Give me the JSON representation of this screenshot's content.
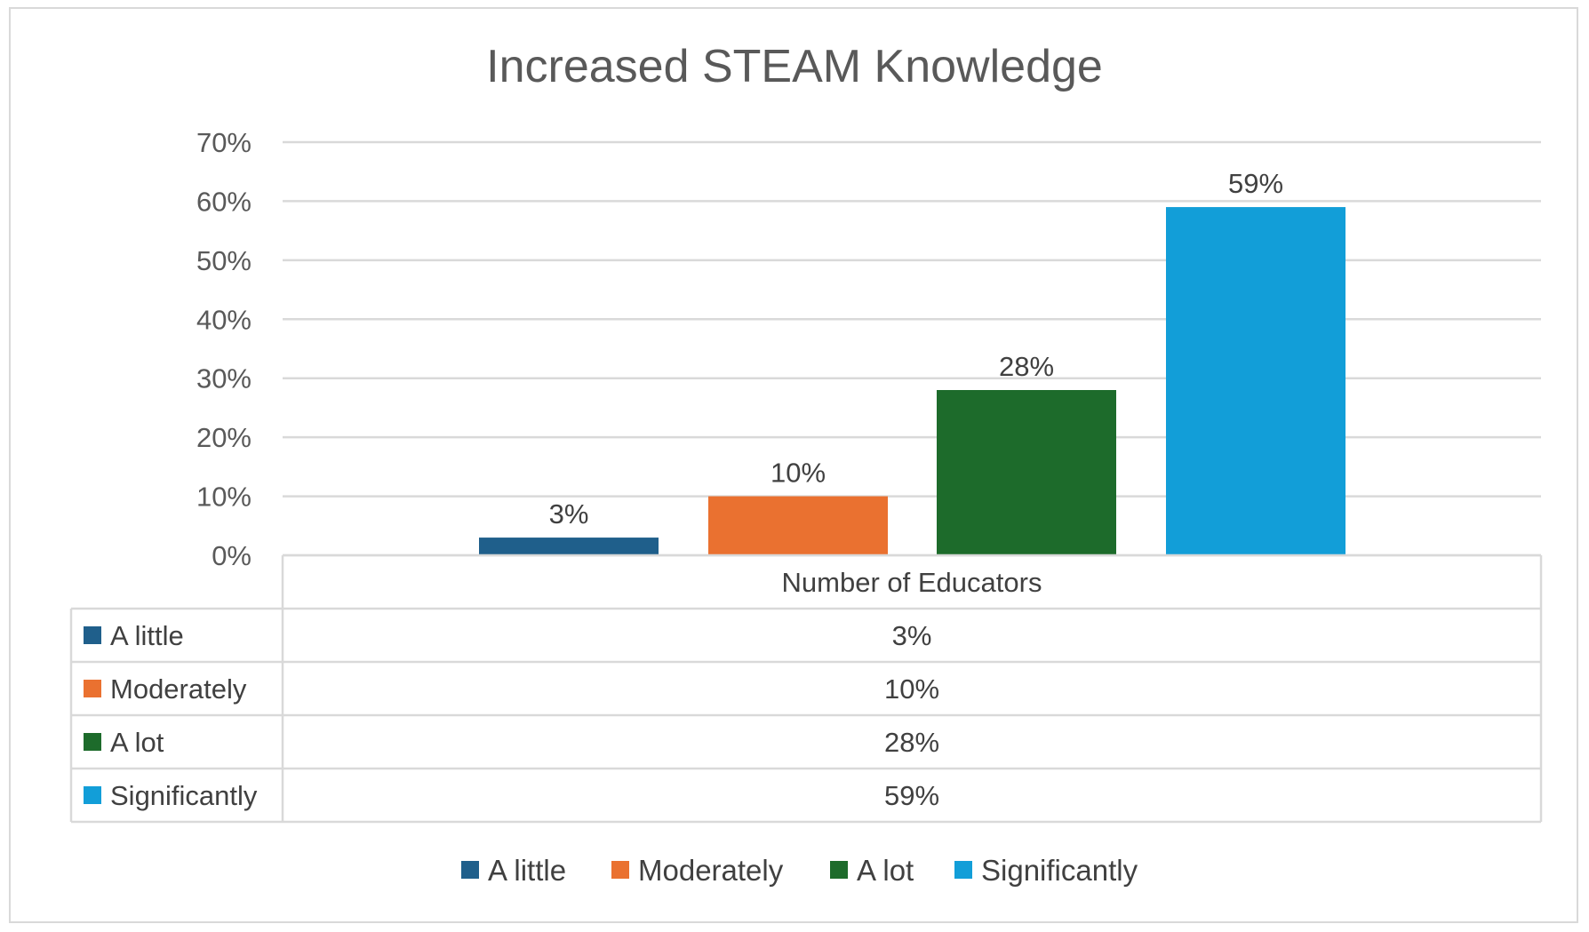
{
  "chart_data": {
    "type": "bar",
    "title": "Increased STEAM Knowledge",
    "xlabel": "",
    "ylabel": "",
    "category": "Number of Educators",
    "ylim": [
      0,
      70
    ],
    "yticks": [
      "0%",
      "10%",
      "20%",
      "30%",
      "40%",
      "50%",
      "60%",
      "70%"
    ],
    "grid": true,
    "legend_position": "bottom",
    "series": [
      {
        "name": "A little",
        "value": 3,
        "label": "3%",
        "color": "#1f5f8b"
      },
      {
        "name": "Moderately",
        "value": 10,
        "label": "10%",
        "color": "#ea7130"
      },
      {
        "name": "A lot",
        "value": 28,
        "label": "28%",
        "color": "#1d6b2b"
      },
      {
        "name": "Significantly",
        "value": 59,
        "label": "59%",
        "color": "#129ed8"
      }
    ]
  }
}
